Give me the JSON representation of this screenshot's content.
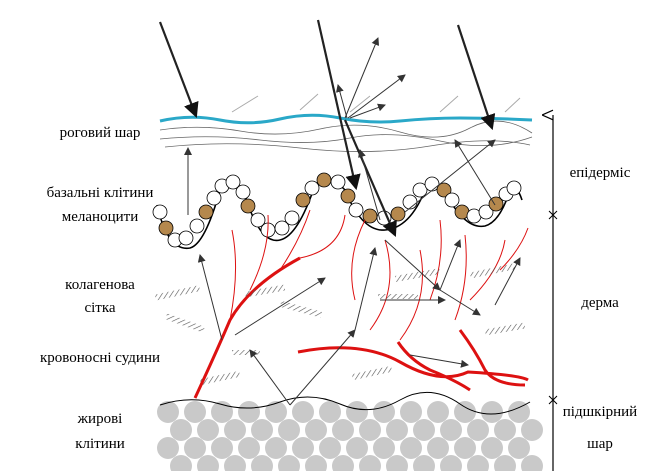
{
  "left_labels": [
    [
      "роговий шар"
    ],
    [
      "базальні клітини",
      "меланоцити"
    ],
    [
      "колагенова",
      "сітка"
    ],
    [
      "кровоносні судини"
    ],
    [
      "жирові",
      "клітини"
    ]
  ],
  "right_labels": [
    [
      "епідерміс"
    ],
    [
      "дерма"
    ],
    [
      "підшкірний",
      "шар"
    ]
  ]
}
